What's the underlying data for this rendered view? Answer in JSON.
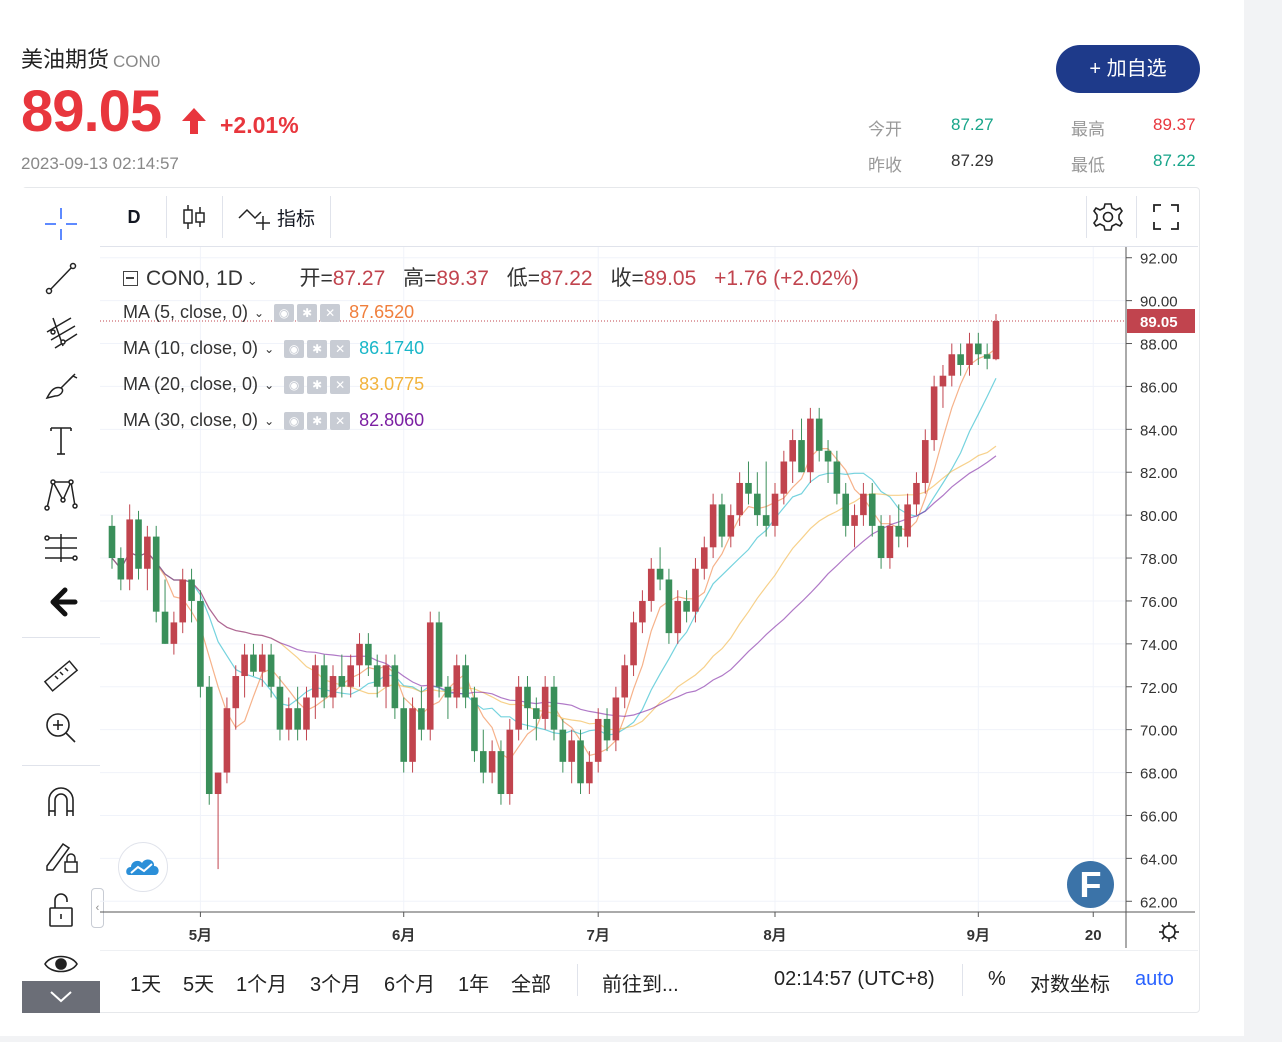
{
  "quote": {
    "name": "美油期货",
    "code": "CON0",
    "price": "89.05",
    "change_pct": "+2.01%",
    "timestamp": "2023-09-13 02:14:57",
    "favorite_button": "+ 加自选",
    "stats": {
      "open_label": "今开",
      "open": "87.27",
      "high_label": "最高",
      "high": "89.37",
      "prev_close_label": "昨收",
      "prev_close": "87.29",
      "low_label": "最低",
      "low": "87.22"
    },
    "colors": {
      "up": "#e8363d",
      "down": "#18a58a",
      "accent": "#1e3a8a"
    }
  },
  "toolbar": {
    "interval": "D",
    "indicators_label": "指标"
  },
  "legend": {
    "symbol": "CON0, 1D",
    "open_label": "开=",
    "open": "87.27",
    "high_label": "高=",
    "high": "89.37",
    "low_label": "低=",
    "low": "87.22",
    "close_label": "收=",
    "close": "89.05",
    "change": "+1.76 (+2.02%)",
    "ma": [
      {
        "label": "MA (5, close, 0)",
        "value": "87.6520",
        "color": "#f07f3c"
      },
      {
        "label": "MA (10, close, 0)",
        "value": "86.1740",
        "color": "#19b6c8"
      },
      {
        "label": "MA (20, close, 0)",
        "value": "83.0775",
        "color": "#f2b33d"
      },
      {
        "label": "MA (30, close, 0)",
        "value": "82.8060",
        "color": "#7b1fa2"
      }
    ]
  },
  "bottom_bar": {
    "ranges": [
      "1天",
      "5天",
      "1个月",
      "3个月",
      "6个月",
      "1年",
      "全部"
    ],
    "goto": "前往到...",
    "clock": "02:14:57 (UTC+8)",
    "percent": "%",
    "log_scale": "对数坐标",
    "auto": "auto"
  },
  "chart_data": {
    "type": "candlestick",
    "price_axis": {
      "ticks": [
        "92.00",
        "90.00",
        "88.00",
        "86.00",
        "84.00",
        "82.00",
        "80.00",
        "78.00",
        "76.00",
        "74.00",
        "72.00",
        "70.00",
        "68.00",
        "66.00",
        "64.00",
        "62.00"
      ],
      "range": [
        61.5,
        92.5
      ],
      "last_price": "89.05"
    },
    "time_axis": {
      "ticks": [
        {
          "label": "5月",
          "index": 10
        },
        {
          "label": "6月",
          "index": 33
        },
        {
          "label": "7月",
          "index": 55
        },
        {
          "label": "8月",
          "index": 75
        },
        {
          "label": "9月",
          "index": 98
        },
        {
          "label": "20",
          "index": 111
        }
      ]
    },
    "colors": {
      "up": "#c1444e",
      "down": "#3a8f5a",
      "last_line": "#c1444e"
    },
    "ohlc": [
      [
        79.5,
        80.0,
        77.5,
        78.0
      ],
      [
        78.0,
        78.5,
        76.5,
        77.0
      ],
      [
        77.0,
        80.5,
        76.5,
        79.8
      ],
      [
        79.8,
        80.2,
        77.0,
        77.5
      ],
      [
        77.5,
        79.5,
        76.5,
        79.0
      ],
      [
        79.0,
        79.5,
        75.0,
        75.5
      ],
      [
        75.5,
        77.0,
        74.0,
        74.0
      ],
      [
        74.0,
        75.5,
        73.5,
        75.0
      ],
      [
        75.0,
        77.5,
        74.5,
        77.0
      ],
      [
        77.0,
        77.5,
        75.0,
        76.0
      ],
      [
        76.0,
        76.5,
        71.5,
        72.0
      ],
      [
        72.0,
        72.5,
        66.5,
        67.0
      ],
      [
        67.0,
        68.0,
        63.5,
        68.0
      ],
      [
        68.0,
        71.5,
        67.5,
        71.0
      ],
      [
        71.0,
        73.0,
        70.0,
        72.5
      ],
      [
        72.5,
        74.0,
        71.5,
        73.5
      ],
      [
        73.5,
        74.0,
        72.5,
        72.7
      ],
      [
        72.7,
        74.0,
        72.0,
        73.5
      ],
      [
        73.5,
        74.0,
        71.5,
        72.0
      ],
      [
        72.0,
        72.5,
        69.5,
        70.0
      ],
      [
        70.0,
        71.5,
        69.5,
        71.0
      ],
      [
        71.0,
        72.0,
        69.5,
        70.0
      ],
      [
        70.0,
        72.0,
        69.5,
        71.5
      ],
      [
        71.5,
        73.5,
        70.5,
        73.0
      ],
      [
        73.0,
        73.5,
        71.0,
        71.5
      ],
      [
        71.5,
        73.0,
        71.0,
        72.5
      ],
      [
        72.5,
        73.5,
        71.5,
        72.0
      ],
      [
        72.0,
        73.5,
        71.5,
        73.0
      ],
      [
        73.0,
        74.5,
        72.0,
        74.0
      ],
      [
        74.0,
        74.5,
        72.5,
        73.0
      ],
      [
        73.0,
        73.5,
        71.5,
        72.0
      ],
      [
        72.0,
        73.5,
        71.0,
        73.0
      ],
      [
        73.0,
        73.5,
        70.5,
        71.0
      ],
      [
        71.0,
        71.5,
        68.0,
        68.5
      ],
      [
        68.5,
        71.5,
        68.0,
        71.0
      ],
      [
        71.0,
        72.0,
        69.5,
        70.0
      ],
      [
        70.0,
        75.5,
        69.5,
        75.0
      ],
      [
        75.0,
        75.5,
        71.5,
        72.0
      ],
      [
        72.0,
        72.5,
        70.5,
        71.5
      ],
      [
        71.5,
        73.5,
        71.0,
        73.0
      ],
      [
        73.0,
        73.5,
        71.0,
        71.5
      ],
      [
        71.5,
        72.0,
        68.5,
        69.0
      ],
      [
        69.0,
        70.0,
        67.5,
        68.0
      ],
      [
        68.0,
        69.5,
        67.5,
        69.0
      ],
      [
        69.0,
        69.5,
        66.5,
        67.0
      ],
      [
        67.0,
        70.5,
        66.5,
        70.0
      ],
      [
        70.0,
        72.5,
        69.5,
        72.0
      ],
      [
        72.0,
        72.5,
        70.0,
        71.0
      ],
      [
        71.0,
        71.5,
        69.5,
        70.5
      ],
      [
        70.5,
        72.5,
        70.0,
        72.0
      ],
      [
        72.0,
        72.5,
        69.5,
        70.0
      ],
      [
        70.0,
        70.5,
        68.0,
        68.5
      ],
      [
        68.5,
        70.0,
        67.5,
        69.5
      ],
      [
        69.5,
        70.0,
        67.0,
        67.5
      ],
      [
        67.5,
        69.0,
        67.0,
        68.5
      ],
      [
        68.5,
        71.0,
        68.0,
        70.5
      ],
      [
        70.5,
        71.0,
        69.0,
        69.5
      ],
      [
        69.5,
        72.0,
        69.0,
        71.5
      ],
      [
        71.5,
        73.5,
        71.0,
        73.0
      ],
      [
        73.0,
        75.5,
        72.5,
        75.0
      ],
      [
        75.0,
        76.5,
        74.5,
        76.0
      ],
      [
        76.0,
        78.0,
        75.5,
        77.5
      ],
      [
        77.5,
        78.5,
        76.5,
        77.0
      ],
      [
        77.0,
        77.5,
        74.0,
        74.5
      ],
      [
        74.5,
        76.5,
        74.0,
        76.0
      ],
      [
        76.0,
        76.5,
        75.0,
        75.5
      ],
      [
        75.5,
        78.0,
        75.0,
        77.5
      ],
      [
        77.5,
        79.0,
        77.0,
        78.5
      ],
      [
        78.5,
        81.0,
        78.0,
        80.5
      ],
      [
        80.5,
        81.0,
        78.5,
        79.0
      ],
      [
        79.0,
        80.5,
        78.5,
        80.0
      ],
      [
        80.0,
        82.0,
        79.5,
        81.5
      ],
      [
        81.5,
        82.5,
        80.5,
        81.0
      ],
      [
        81.0,
        82.0,
        79.5,
        80.0
      ],
      [
        80.0,
        82.5,
        79.0,
        79.5
      ],
      [
        79.5,
        81.5,
        79.0,
        81.0
      ],
      [
        81.0,
        83.0,
        80.5,
        82.5
      ],
      [
        82.5,
        84.0,
        81.5,
        83.5
      ],
      [
        83.5,
        84.5,
        82.0,
        82.0
      ],
      [
        82.0,
        85.0,
        81.5,
        84.5
      ],
      [
        84.5,
        85.0,
        82.5,
        83.0
      ],
      [
        83.0,
        83.5,
        81.5,
        82.5
      ],
      [
        82.5,
        83.0,
        80.5,
        81.0
      ],
      [
        81.0,
        81.5,
        79.0,
        79.5
      ],
      [
        79.5,
        80.5,
        78.5,
        80.0
      ],
      [
        80.0,
        81.5,
        79.5,
        81.0
      ],
      [
        81.0,
        81.5,
        79.0,
        79.5
      ],
      [
        79.5,
        80.0,
        77.5,
        78.0
      ],
      [
        78.0,
        80.0,
        77.5,
        79.5
      ],
      [
        79.5,
        80.5,
        78.5,
        79.0
      ],
      [
        79.0,
        81.0,
        78.5,
        80.5
      ],
      [
        80.5,
        82.0,
        80.0,
        81.5
      ],
      [
        81.5,
        84.0,
        81.0,
        83.5
      ],
      [
        83.5,
        86.5,
        83.0,
        86.0
      ],
      [
        86.0,
        87.0,
        85.0,
        86.5
      ],
      [
        86.5,
        88.0,
        86.0,
        87.5
      ],
      [
        87.5,
        88.0,
        86.5,
        87.0
      ],
      [
        87.0,
        88.5,
        86.5,
        88.0
      ],
      [
        88.0,
        88.5,
        87.0,
        87.5
      ],
      [
        87.5,
        88.0,
        86.8,
        87.29
      ],
      [
        87.27,
        89.37,
        87.22,
        89.05
      ]
    ]
  }
}
